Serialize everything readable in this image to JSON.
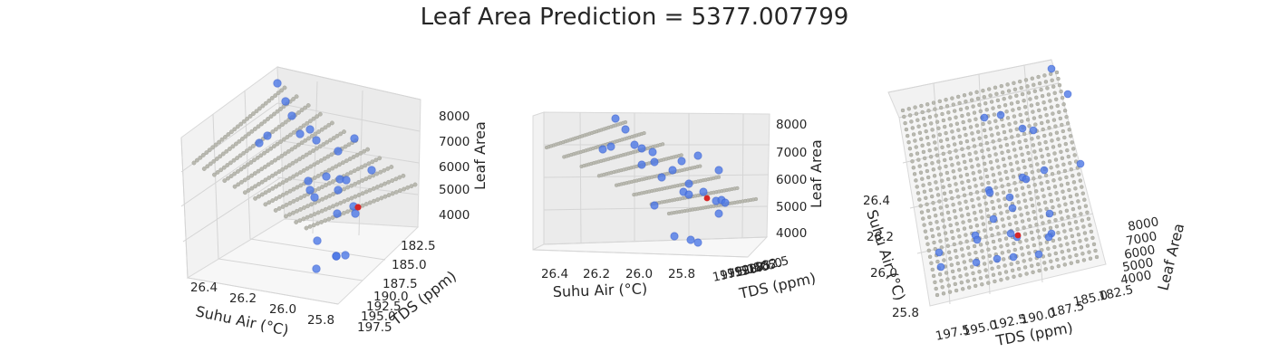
{
  "title": "Leaf Area Prediction = 5377.007799",
  "chart_data": [
    {
      "type": "scatter3d",
      "view": "default",
      "xlabel": "Suhu Air (°C)",
      "ylabel": "TDS (ppm)",
      "zlabel": "Leaf Area",
      "xticks": [
        "26.4",
        "26.2",
        "26.0",
        "25.8"
      ],
      "yticks": [
        "182.5",
        "185.0",
        "187.5",
        "190.0",
        "192.5",
        "195.0",
        "197.5"
      ],
      "zticks": [
        "8000",
        "7000",
        "6000",
        "5000",
        "4000"
      ],
      "prediction_surface": "plane (gray points)",
      "observed_points_color": "#4c72e6",
      "prediction_point_color": "#d62728"
    },
    {
      "type": "scatter3d",
      "view": "low elevation",
      "xlabel": "Suhu Air (°C)",
      "ylabel": "TDS (ppm)",
      "zlabel": "Leaf Area",
      "xticks": [
        "26.4",
        "26.2",
        "26.0",
        "25.8"
      ],
      "yticks": [
        "182.5",
        "185.0",
        "187.5",
        "190.0",
        "192.5",
        "195.0",
        "197.5"
      ],
      "zticks": [
        "8000",
        "7000",
        "6000",
        "5000",
        "4000"
      ]
    },
    {
      "type": "scatter3d",
      "view": "top-down",
      "xlabel": "Suhu Air (°C)",
      "ylabel": "TDS (ppm)",
      "zlabel": "Leaf Area",
      "xticks": [
        "26.4",
        "26.2",
        "26.0",
        "25.8"
      ],
      "yticks": [
        "197.5",
        "195.0",
        "192.5",
        "190.0",
        "187.5",
        "185.0",
        "182.5"
      ],
      "zticks": [
        "8000",
        "7000",
        "6000",
        "5000",
        "4000"
      ]
    }
  ]
}
